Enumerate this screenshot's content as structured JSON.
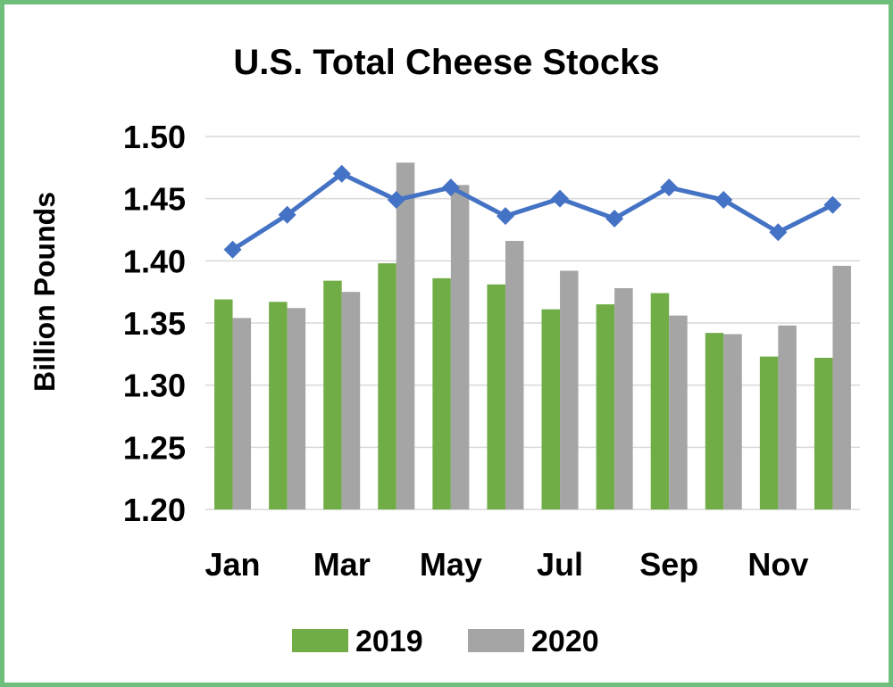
{
  "chart_data": {
    "type": "bar",
    "title": "U.S. Total Cheese Stocks",
    "ylabel": "Billion Pounds",
    "xlabel": "",
    "ylim": [
      1.2,
      1.5
    ],
    "yticks": [
      "1.20",
      "1.25",
      "1.30",
      "1.35",
      "1.40",
      "1.45",
      "1.50"
    ],
    "ytick_values": [
      1.2,
      1.25,
      1.3,
      1.35,
      1.4,
      1.45,
      1.5
    ],
    "grid": true,
    "legend_position": "bottom",
    "categories": [
      "Jan",
      "Feb",
      "Mar",
      "Apr",
      "May",
      "Jun",
      "Jul",
      "Aug",
      "Sep",
      "Oct",
      "Nov",
      "Dec"
    ],
    "x_tick_labels": [
      "Jan",
      "",
      "Mar",
      "",
      "May",
      "",
      "Jul",
      "",
      "Sep",
      "",
      "Nov",
      ""
    ],
    "series": [
      {
        "name": "2019",
        "type": "bar",
        "color": "#70ad47",
        "values": [
          1.369,
          1.367,
          1.384,
          1.398,
          1.386,
          1.381,
          1.361,
          1.365,
          1.374,
          1.342,
          1.323,
          1.322
        ]
      },
      {
        "name": "2020",
        "type": "bar",
        "color": "#a5a5a5",
        "values": [
          1.354,
          1.362,
          1.375,
          1.479,
          1.461,
          1.416,
          1.392,
          1.378,
          1.356,
          1.341,
          1.348,
          1.396
        ]
      },
      {
        "name": "",
        "type": "line",
        "color": "#4472c4",
        "marker": "diamond",
        "values": [
          1.409,
          1.437,
          1.47,
          1.449,
          1.459,
          1.436,
          1.45,
          1.434,
          1.459,
          1.449,
          1.423,
          1.445
        ]
      }
    ]
  }
}
